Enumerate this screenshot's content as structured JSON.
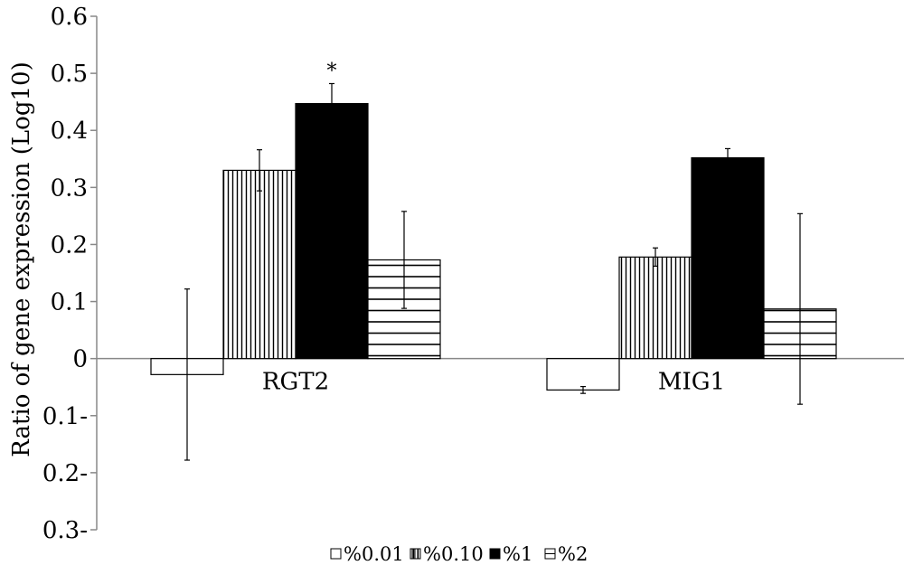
{
  "chart_data": {
    "type": "bar",
    "ylabel": "Ratio of gene expression (Log10)",
    "ylim": [
      -0.3,
      0.6
    ],
    "yticks": [
      0.6,
      0.5,
      0.4,
      0.3,
      0.2,
      0.1,
      0,
      -0.1,
      -0.2,
      -0.3
    ],
    "ytick_labels": [
      "0.6",
      "0.5",
      "0.4",
      "0.3",
      "0.2",
      "0.1",
      "0",
      "0.1-",
      "0.2-",
      "0.3-"
    ],
    "categories": [
      "RGT2",
      "MIG1"
    ],
    "series": [
      {
        "name": "%0.01",
        "pattern": "none",
        "values": [
          -0.028,
          -0.055
        ],
        "errors": [
          0.15,
          0.006
        ]
      },
      {
        "name": "%0.10",
        "pattern": "vertical",
        "values": [
          0.33,
          0.178
        ],
        "errors": [
          0.036,
          0.016
        ]
      },
      {
        "name": "%1",
        "pattern": "solid",
        "values": [
          0.447,
          0.352
        ],
        "errors": [
          0.035,
          0.016
        ]
      },
      {
        "name": "%2",
        "pattern": "horizontal",
        "values": [
          0.173,
          0.087
        ],
        "errors": [
          0.085,
          0.167
        ]
      }
    ],
    "annotations": [
      {
        "category": "RGT2",
        "series": "%1",
        "text": "*"
      }
    ],
    "legend_position": "bottom",
    "grid": false,
    "colors": {
      "bar_stroke": "#000000",
      "fill_solid": "#000000",
      "background": "#ffffff",
      "axis": "#888888"
    }
  }
}
